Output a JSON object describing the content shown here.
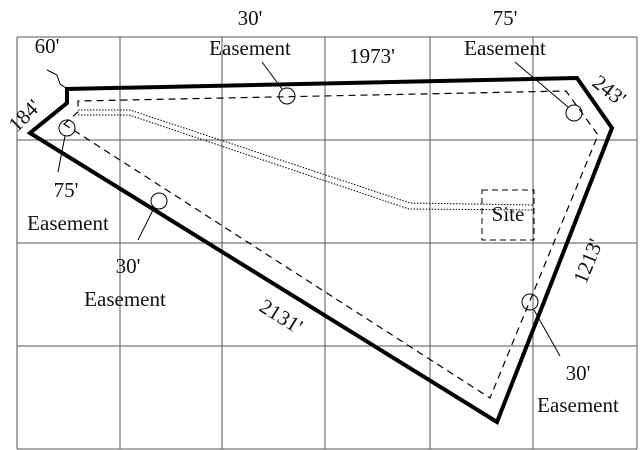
{
  "labels": [
    "30'",
    "Easement",
    "75'",
    "Easement",
    "60'",
    "1973'",
    "184'",
    "243'",
    "75'",
    "Easement",
    "30'",
    "Easement",
    "Site",
    "1213'",
    "2131'",
    "30'",
    "Easement"
  ]
}
